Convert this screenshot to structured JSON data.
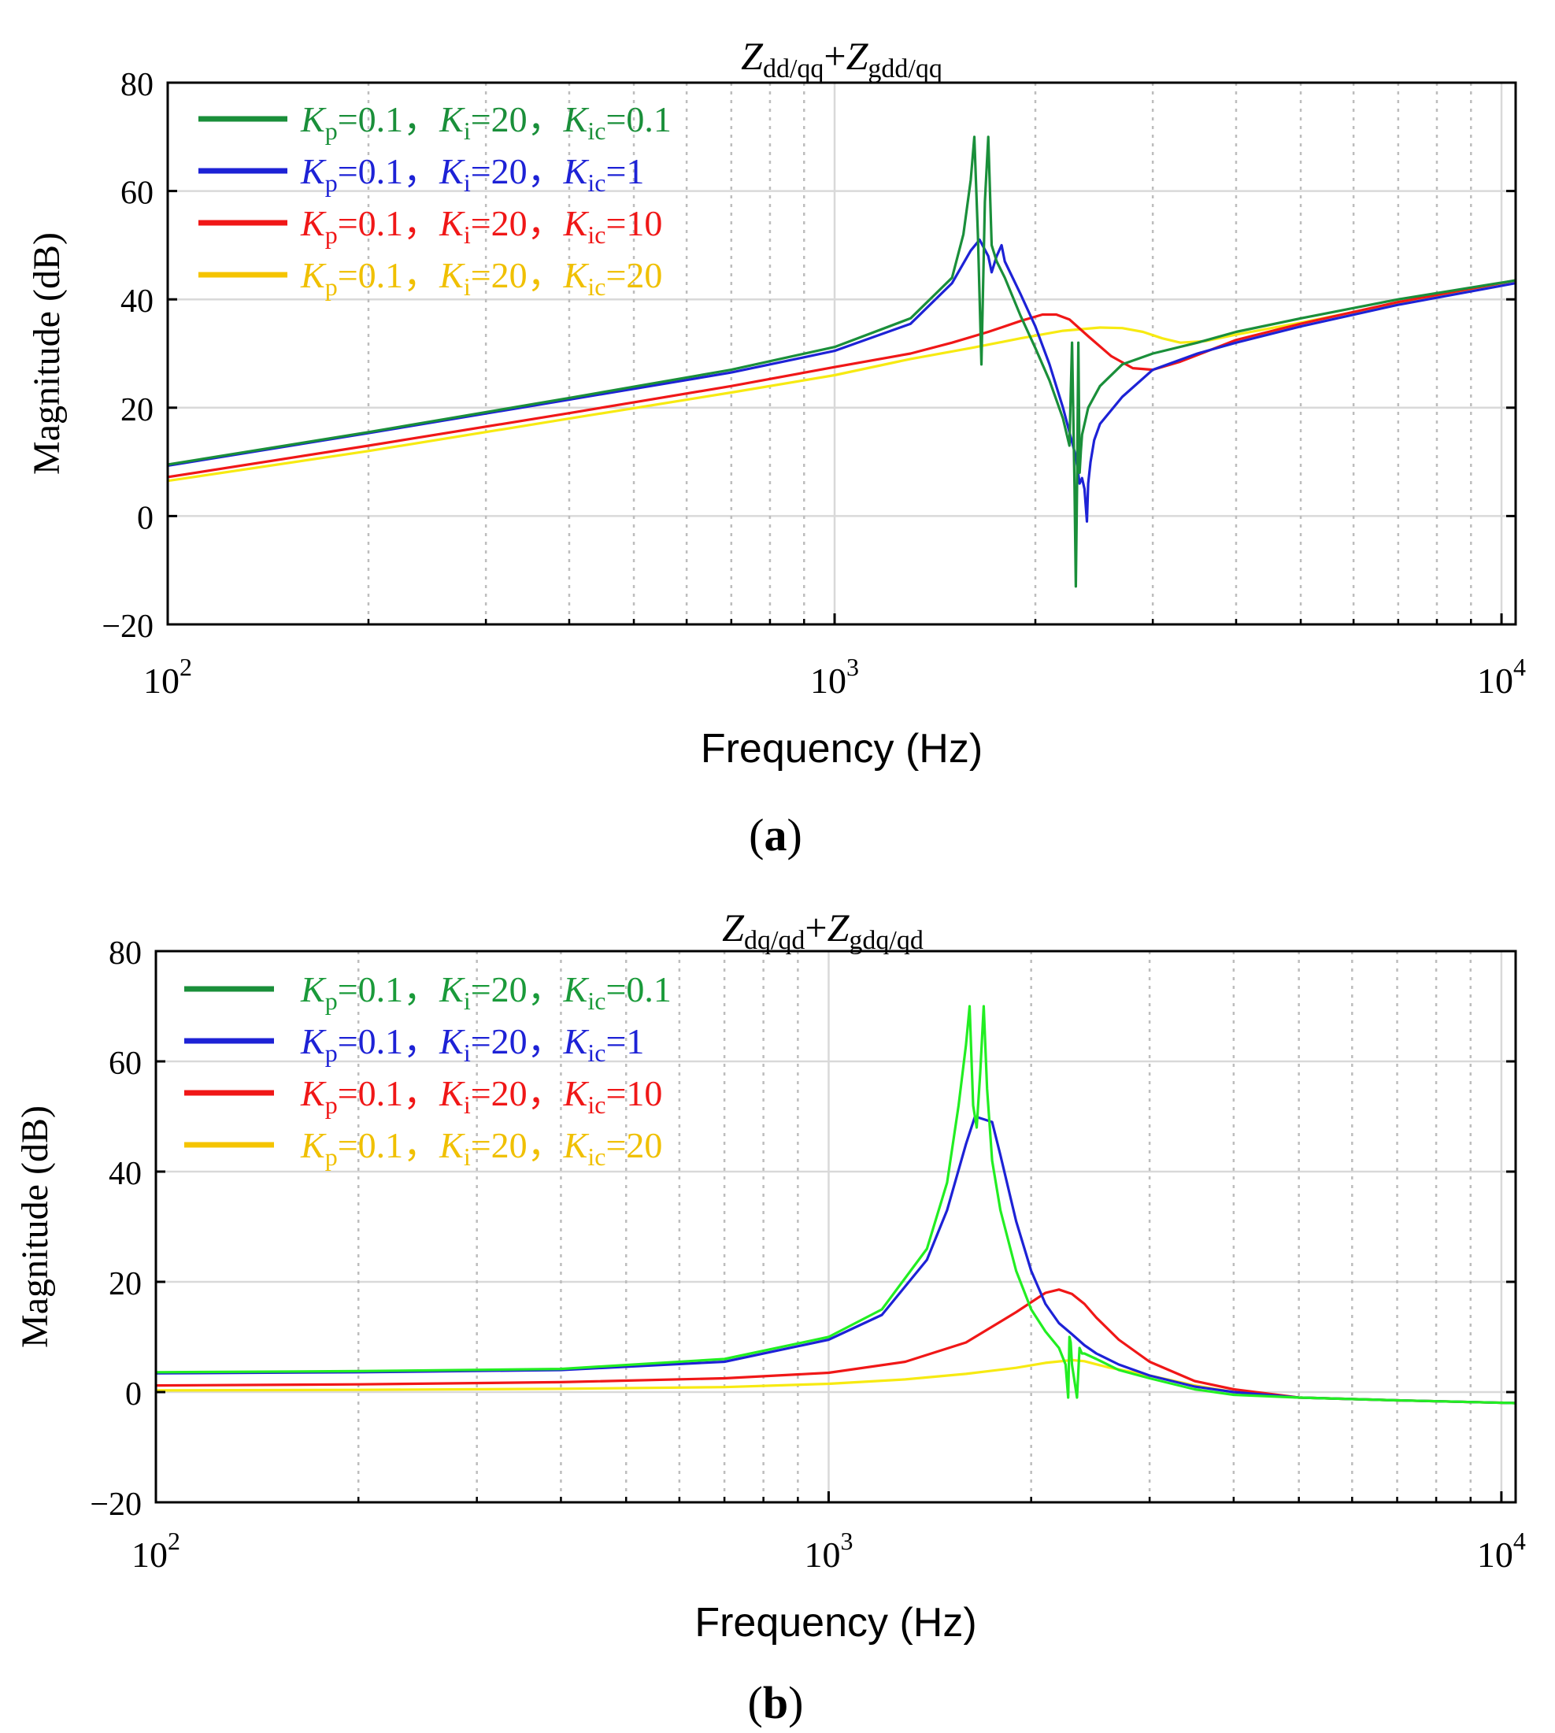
{
  "figure": {
    "panel_labels": [
      "a",
      "b"
    ]
  },
  "chart_data": [
    {
      "type": "line",
      "panel_label": "a",
      "title": {
        "main_1": "Z",
        "sub_1": "dd/qq",
        "plus": "+",
        "main_2": "Z",
        "sub_2": "gdd/qq"
      },
      "xlabel": "Frequency  (Hz)",
      "ylabel": "Magnitude (dB)",
      "xscale": "log",
      "xlim": [
        100,
        10500
      ],
      "ylim": [
        -20,
        80
      ],
      "yticks": [
        -20,
        0,
        20,
        40,
        60,
        80
      ],
      "ytick_labels": [
        "−20",
        "0",
        "20",
        "40",
        "60",
        "80"
      ],
      "xticks": [
        100,
        1000,
        10000
      ],
      "xtick_labels": [
        {
          "base": "10",
          "exp": "2"
        },
        {
          "base": "10",
          "exp": "3"
        },
        {
          "base": "10",
          "exp": "4"
        }
      ],
      "grid": true,
      "legend_position": "top-left",
      "series": [
        {
          "name": "Kic=0.1",
          "color": "#1a8f3a",
          "legend": {
            "k": "K",
            "p": "p",
            "kp": "=0.1，",
            "i": "i",
            "ki": "=20，",
            "ic": "ic",
            "kic": "=0.1"
          },
          "x": [
            100,
            200,
            400,
            700,
            1000,
            1300,
            1500,
            1560,
            1600,
            1620,
            1640,
            1660,
            1680,
            1700,
            1720,
            1750,
            1800,
            1900,
            2000,
            2100,
            2200,
            2250,
            2270,
            2290,
            2300,
            2310,
            2320,
            2330,
            2340,
            2350,
            2380,
            2400,
            2500,
            2700,
            3000,
            3500,
            4000,
            5000,
            7000,
            10500
          ],
          "y": [
            9.5,
            15.5,
            21.8,
            27,
            31.2,
            36.5,
            44,
            52,
            62,
            70,
            52,
            28,
            58,
            70,
            50,
            47,
            44,
            37,
            31,
            25,
            18,
            13,
            32,
            5,
            -13,
            6,
            32,
            8,
            12,
            15,
            18,
            20,
            24,
            28,
            30,
            32,
            34,
            36.5,
            40,
            43.5
          ]
        },
        {
          "name": "Kic=1",
          "color": "#1d22d6",
          "legend": {
            "k": "K",
            "p": "p",
            "kp": "=0.1，",
            "i": "i",
            "ki": "=20，",
            "ic": "ic",
            "kic": "=1"
          },
          "x": [
            100,
            200,
            400,
            700,
            1000,
            1300,
            1500,
            1600,
            1650,
            1700,
            1720,
            1750,
            1780,
            1800,
            1900,
            2000,
            2100,
            2200,
            2300,
            2330,
            2350,
            2370,
            2390,
            2400,
            2420,
            2450,
            2500,
            2700,
            3000,
            3500,
            4000,
            5000,
            7000,
            10500
          ],
          "y": [
            9.3,
            15.3,
            21.5,
            26.5,
            30.5,
            35.5,
            43,
            49,
            51,
            48,
            45,
            48,
            50,
            47,
            41,
            35,
            28,
            20,
            11,
            6,
            7,
            5,
            -1,
            6,
            10,
            14,
            17,
            22,
            27,
            30,
            32,
            35,
            39,
            43
          ]
        },
        {
          "name": "Kic=10",
          "color": "#f01717",
          "legend": {
            "k": "K",
            "p": "p",
            "kp": "=0.1，",
            "i": "i",
            "ki": "=20，",
            "ic": "ic",
            "kic": "=10"
          },
          "x": [
            100,
            200,
            400,
            700,
            1000,
            1300,
            1500,
            1700,
            1900,
            2050,
            2150,
            2250,
            2400,
            2600,
            2800,
            3000,
            3300,
            3600,
            4000,
            5000,
            7000,
            10500
          ],
          "y": [
            7.2,
            13,
            19,
            24,
            27.5,
            30,
            32,
            34,
            36,
            37.2,
            37.2,
            36.3,
            33.2,
            29.5,
            27.3,
            27,
            28.5,
            30.3,
            32.5,
            35.5,
            39.5,
            43.5
          ]
        },
        {
          "name": "Kic=20",
          "color": "#f7ea12",
          "legend": {
            "k": "K",
            "p": "p",
            "kp": "=0.1，",
            "i": "i",
            "ki": "=20，",
            "ic": "ic",
            "kic": "=20"
          },
          "x": [
            100,
            200,
            400,
            700,
            1000,
            1300,
            1600,
            1900,
            2200,
            2500,
            2700,
            2900,
            3100,
            3300,
            3600,
            4000,
            5000,
            7000,
            10500
          ],
          "y": [
            6.5,
            12,
            18,
            22.8,
            26,
            29,
            31,
            32.8,
            34.2,
            34.8,
            34.7,
            34,
            32.8,
            32,
            32.3,
            33.5,
            35.7,
            39.3,
            43.5
          ]
        }
      ]
    },
    {
      "type": "line",
      "panel_label": "b",
      "title": {
        "main_1": "Z",
        "sub_1": "dq/qd",
        "plus": "+",
        "main_2": "Z",
        "sub_2": "gdq/qd"
      },
      "xlabel": "Frequency  (Hz)",
      "ylabel": "Magnitude (dB)",
      "xscale": "log",
      "xlim": [
        100,
        10500
      ],
      "ylim": [
        -20,
        80
      ],
      "yticks": [
        -20,
        0,
        20,
        40,
        60,
        80
      ],
      "ytick_labels": [
        "−20",
        "0",
        "20",
        "40",
        "60",
        "80"
      ],
      "xticks": [
        100,
        1000,
        10000
      ],
      "xtick_labels": [
        {
          "base": "10",
          "exp": "2"
        },
        {
          "base": "10",
          "exp": "3"
        },
        {
          "base": "10",
          "exp": "4"
        }
      ],
      "grid": true,
      "legend_position": "top-left",
      "series": [
        {
          "name": "Kic=0.1",
          "color": "#22ee22",
          "legend": {
            "k": "K",
            "p": "p",
            "kp": "=0.1，",
            "i": "i",
            "ki": "=20，",
            "ic": "ic",
            "kic": "=0.1"
          },
          "x": [
            100,
            200,
            400,
            700,
            1000,
            1200,
            1400,
            1500,
            1560,
            1600,
            1620,
            1640,
            1660,
            1680,
            1700,
            1720,
            1750,
            1800,
            1900,
            2000,
            2100,
            2200,
            2250,
            2270,
            2280,
            2290,
            2300,
            2320,
            2340,
            2360,
            2380,
            2400,
            2500,
            2700,
            3000,
            3500,
            4000,
            5000,
            7000,
            10500
          ],
          "y": [
            3.6,
            3.8,
            4.2,
            6,
            10,
            15,
            26,
            38,
            52,
            63,
            70,
            52,
            48,
            58,
            70,
            55,
            42,
            33,
            22,
            15,
            11,
            8,
            5,
            -1,
            10,
            9,
            5,
            2,
            -1,
            8,
            7,
            7,
            6,
            4,
            2.5,
            0.5,
            -0.5,
            -1,
            -1.5,
            -2
          ]
        },
        {
          "name": "Kic=1",
          "color": "#1d22d6",
          "legend": {
            "k": "K",
            "p": "p",
            "kp": "=0.1，",
            "i": "i",
            "ki": "=20，",
            "ic": "ic",
            "kic": "=1"
          },
          "x": [
            100,
            200,
            400,
            700,
            1000,
            1200,
            1400,
            1500,
            1600,
            1650,
            1700,
            1750,
            1800,
            1900,
            2000,
            2100,
            2200,
            2300,
            2400,
            2500,
            2700,
            3000,
            3500,
            4000,
            5000,
            7000,
            10500
          ],
          "y": [
            3.4,
            3.6,
            4,
            5.5,
            9.5,
            14,
            24,
            33,
            45,
            50,
            49.5,
            49,
            43,
            31,
            22,
            16,
            12.5,
            10.5,
            8.5,
            7,
            5,
            3,
            1,
            0,
            -1,
            -1.5,
            -2
          ]
        },
        {
          "name": "Kic=10",
          "color": "#f01717",
          "legend": {
            "k": "K",
            "p": "p",
            "kp": "=0.1，",
            "i": "i",
            "ki": "=20，",
            "ic": "ic",
            "kic": "=10"
          },
          "x": [
            100,
            200,
            400,
            700,
            1000,
            1300,
            1600,
            1900,
            2100,
            2200,
            2300,
            2400,
            2500,
            2700,
            3000,
            3500,
            4000,
            5000,
            7000,
            10500
          ],
          "y": [
            1.2,
            1.4,
            1.8,
            2.5,
            3.5,
            5.5,
            9,
            14.5,
            18,
            18.6,
            17.8,
            16,
            13.5,
            9.5,
            5.5,
            2,
            0.5,
            -1,
            -1.5,
            -2
          ]
        },
        {
          "name": "Kic=20",
          "color": "#f7ea12",
          "legend": {
            "k": "K",
            "p": "p",
            "kp": "=0.1，",
            "i": "i",
            "ki": "=20，",
            "ic": "ic",
            "kic": "=20"
          },
          "x": [
            100,
            200,
            400,
            700,
            1000,
            1300,
            1600,
            1900,
            2100,
            2300,
            2400,
            2600,
            3000,
            3500,
            4000,
            5000,
            7000,
            10500
          ],
          "y": [
            0.3,
            0.4,
            0.6,
            0.9,
            1.5,
            2.3,
            3.3,
            4.4,
            5.3,
            5.8,
            5.6,
            4.5,
            3,
            1.2,
            0,
            -1,
            -1.5,
            -2
          ]
        }
      ]
    }
  ]
}
